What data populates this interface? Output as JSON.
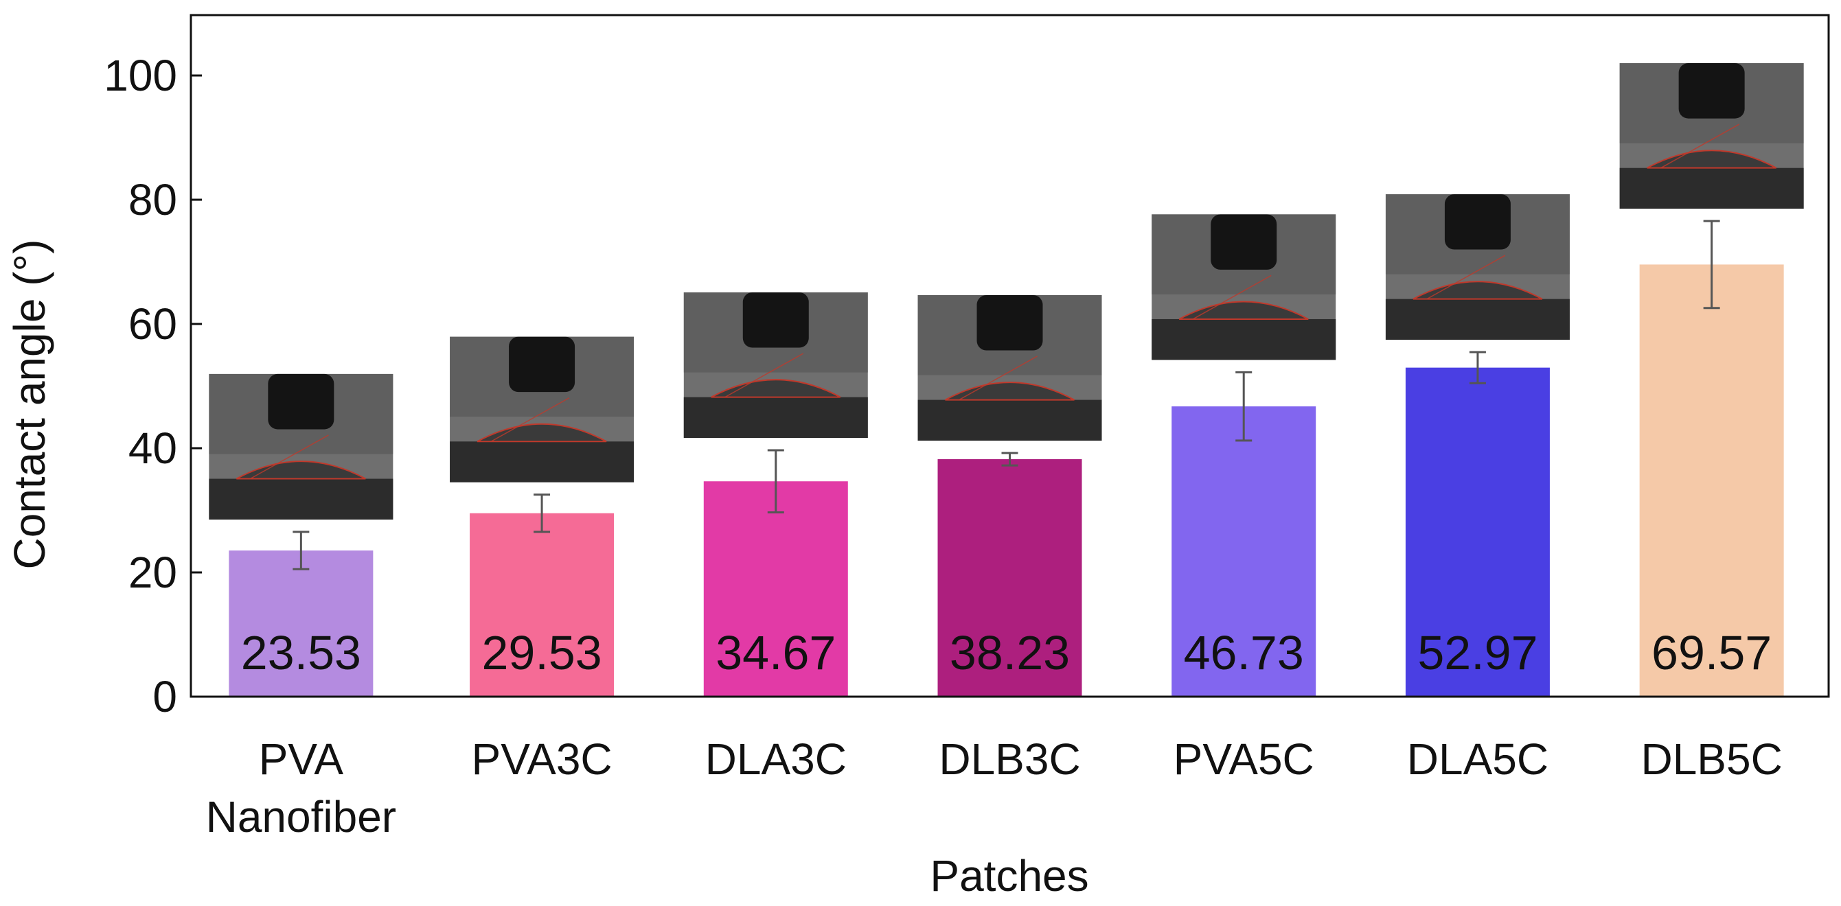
{
  "chart_data": {
    "type": "bar",
    "title": "",
    "xlabel": "Patches",
    "ylabel": "Contact angle (°)",
    "ylim": [
      0,
      110
    ],
    "yticks": [
      0,
      20,
      40,
      60,
      80,
      100
    ],
    "grid": false,
    "categories": [
      [
        "PVA",
        "Nanofiber"
      ],
      [
        "PVA3C"
      ],
      [
        "DLA3C"
      ],
      [
        "DLB3C"
      ],
      [
        "PVA5C"
      ],
      [
        "DLA5C"
      ],
      [
        "DLB5C"
      ]
    ],
    "values": [
      23.53,
      29.53,
      34.67,
      38.23,
      46.73,
      52.97,
      69.57
    ],
    "value_labels": [
      "23.53",
      "29.53",
      "34.67",
      "38.23",
      "46.73",
      "52.97",
      "69.57"
    ],
    "error": [
      3,
      3,
      5,
      1,
      5.5,
      2.5,
      7
    ],
    "colors": [
      "#b48be0",
      "#f56b96",
      "#e23aa6",
      "#ad1f7e",
      "#8266ef",
      "#4a3fe3",
      "#f5c9a8"
    ],
    "inset_images": "water droplet contact angle photographs above each bar"
  }
}
